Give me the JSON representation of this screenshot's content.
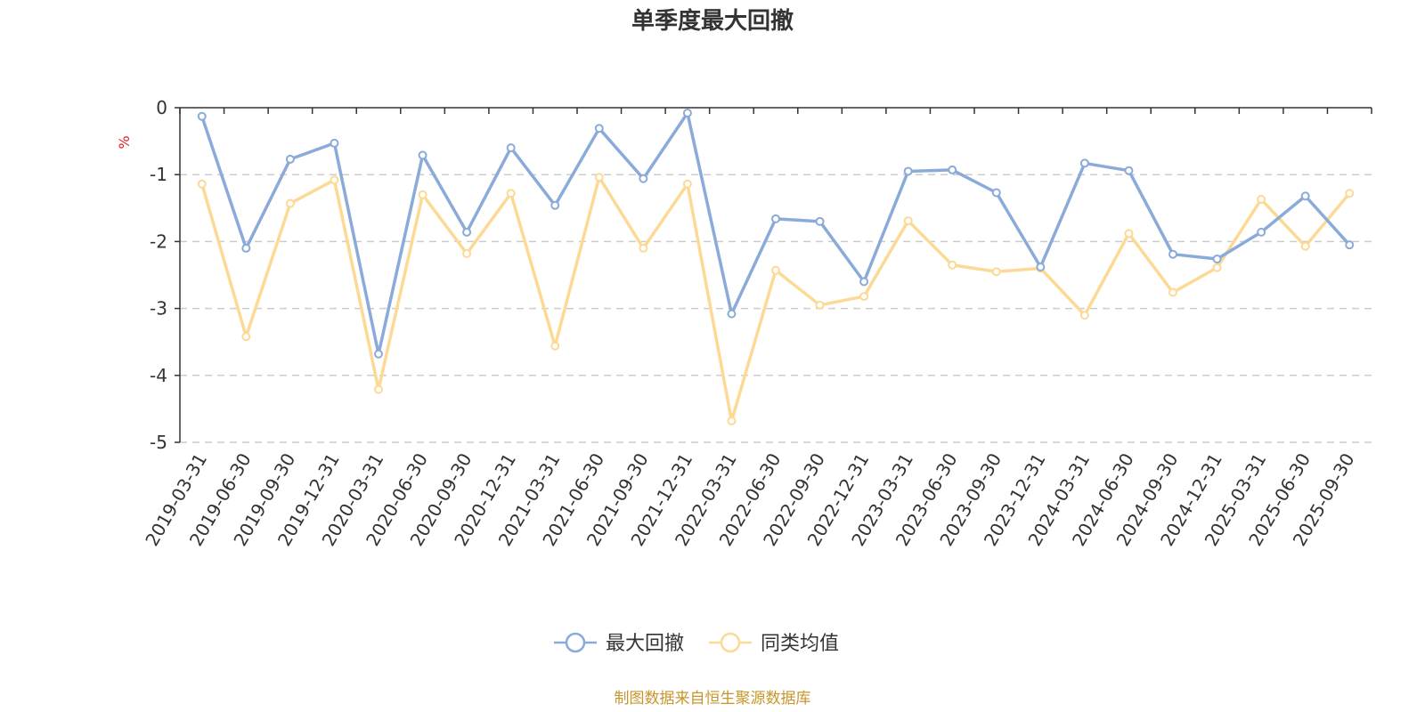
{
  "title": "单季度最大回撤",
  "source": "制图数据来自恒生聚源数据库",
  "unit": "%",
  "colors": {
    "series_0": "#8aabd9",
    "series_1": "#fcd994",
    "axis": "#333333",
    "grid": "#cccccc",
    "unit": "#e02020",
    "source": "#c8952a"
  },
  "chart_data": {
    "type": "line",
    "title": "单季度最大回撤",
    "ylabel": "%",
    "xlabel": "",
    "ylim": [
      -5,
      0
    ],
    "yticks": [
      0,
      -1,
      -2,
      -3,
      -4,
      -5
    ],
    "grid": true,
    "legend_position": "bottom",
    "categories": [
      "2019-03-31",
      "2019-06-30",
      "2019-09-30",
      "2019-12-31",
      "2020-03-31",
      "2020-06-30",
      "2020-09-30",
      "2020-12-31",
      "2021-03-31",
      "2021-06-30",
      "2021-09-30",
      "2021-12-31",
      "2022-03-31",
      "2022-06-30",
      "2022-09-30",
      "2022-12-31",
      "2023-03-31",
      "2023-06-30",
      "2023-09-30",
      "2023-12-31",
      "2024-03-31",
      "2024-06-30",
      "2024-09-30",
      "2024-12-31",
      "2025-03-31",
      "2025-06-30",
      "2025-09-30"
    ],
    "series": [
      {
        "name": "最大回撤",
        "values": [
          -0.13,
          -2.1,
          -0.77,
          -0.53,
          -3.68,
          -0.71,
          -1.86,
          -0.6,
          -1.46,
          -0.31,
          -1.06,
          -0.08,
          -3.08,
          -1.66,
          -1.7,
          -2.6,
          -0.95,
          -0.93,
          -1.27,
          -2.38,
          -0.83,
          -0.94,
          -2.19,
          -2.26,
          -1.86,
          -1.32,
          -2.05
        ]
      },
      {
        "name": "同类均值",
        "values": [
          -1.14,
          -3.42,
          -1.43,
          -1.08,
          -4.21,
          -1.3,
          -2.18,
          -1.28,
          -3.56,
          -1.04,
          -2.1,
          -1.14,
          -4.68,
          -2.43,
          -2.95,
          -2.82,
          -1.69,
          -2.35,
          -2.45,
          -2.4,
          -3.1,
          -1.88,
          -2.76,
          -2.39,
          -1.37,
          -2.07,
          -1.28
        ]
      }
    ]
  }
}
